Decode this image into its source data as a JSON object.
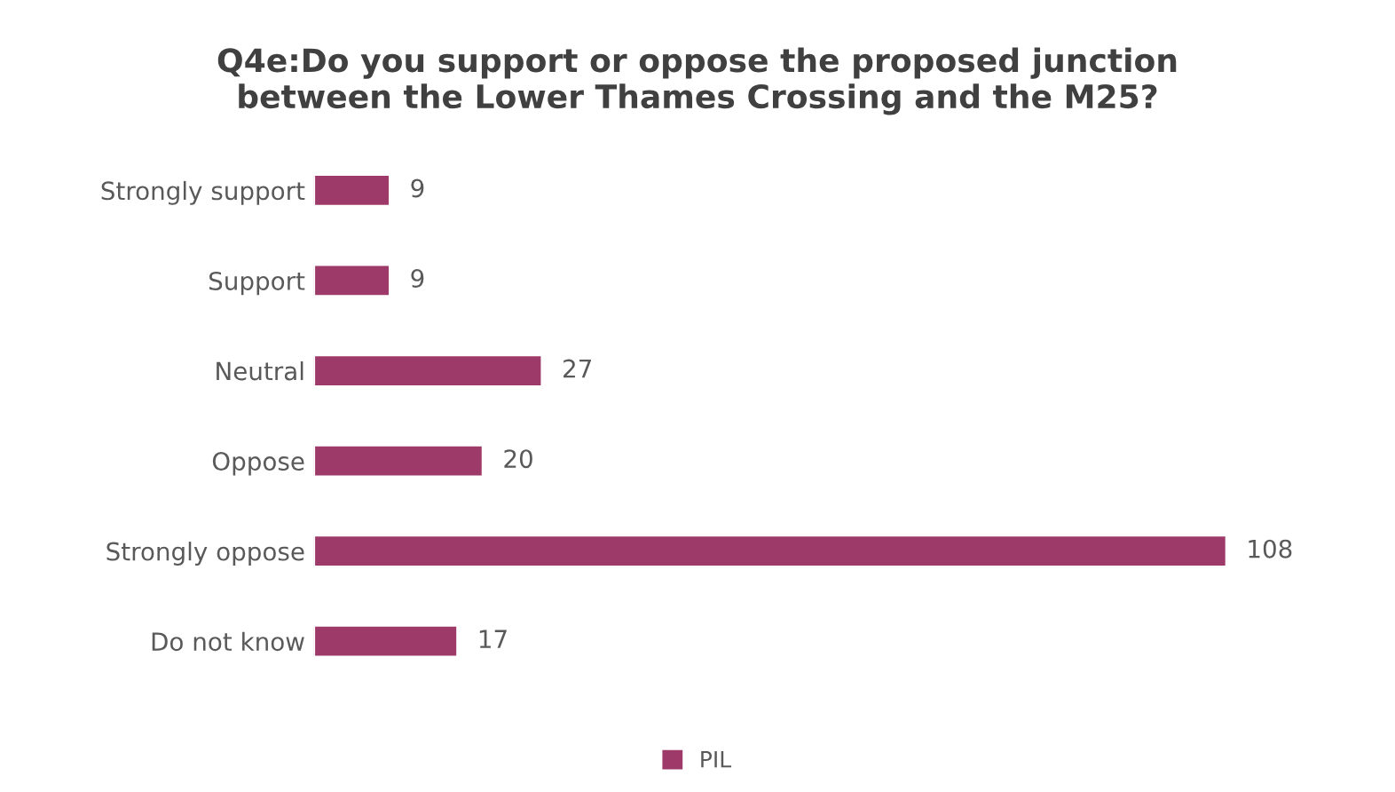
{
  "chart_data": {
    "type": "bar",
    "orientation": "horizontal",
    "title": "Q4e:Do you support or oppose the proposed junction\nbetween the Lower Thames Crossing and the M25?",
    "categories": [
      "Strongly support",
      "Support",
      "Neutral",
      "Oppose",
      "Strongly oppose",
      "Do not know"
    ],
    "series": [
      {
        "name": "PIL",
        "color": "#9e3a6a",
        "values": [
          9,
          9,
          27,
          20,
          108,
          17
        ]
      }
    ],
    "data_labels": true,
    "legend": "bottom",
    "grid": false
  }
}
